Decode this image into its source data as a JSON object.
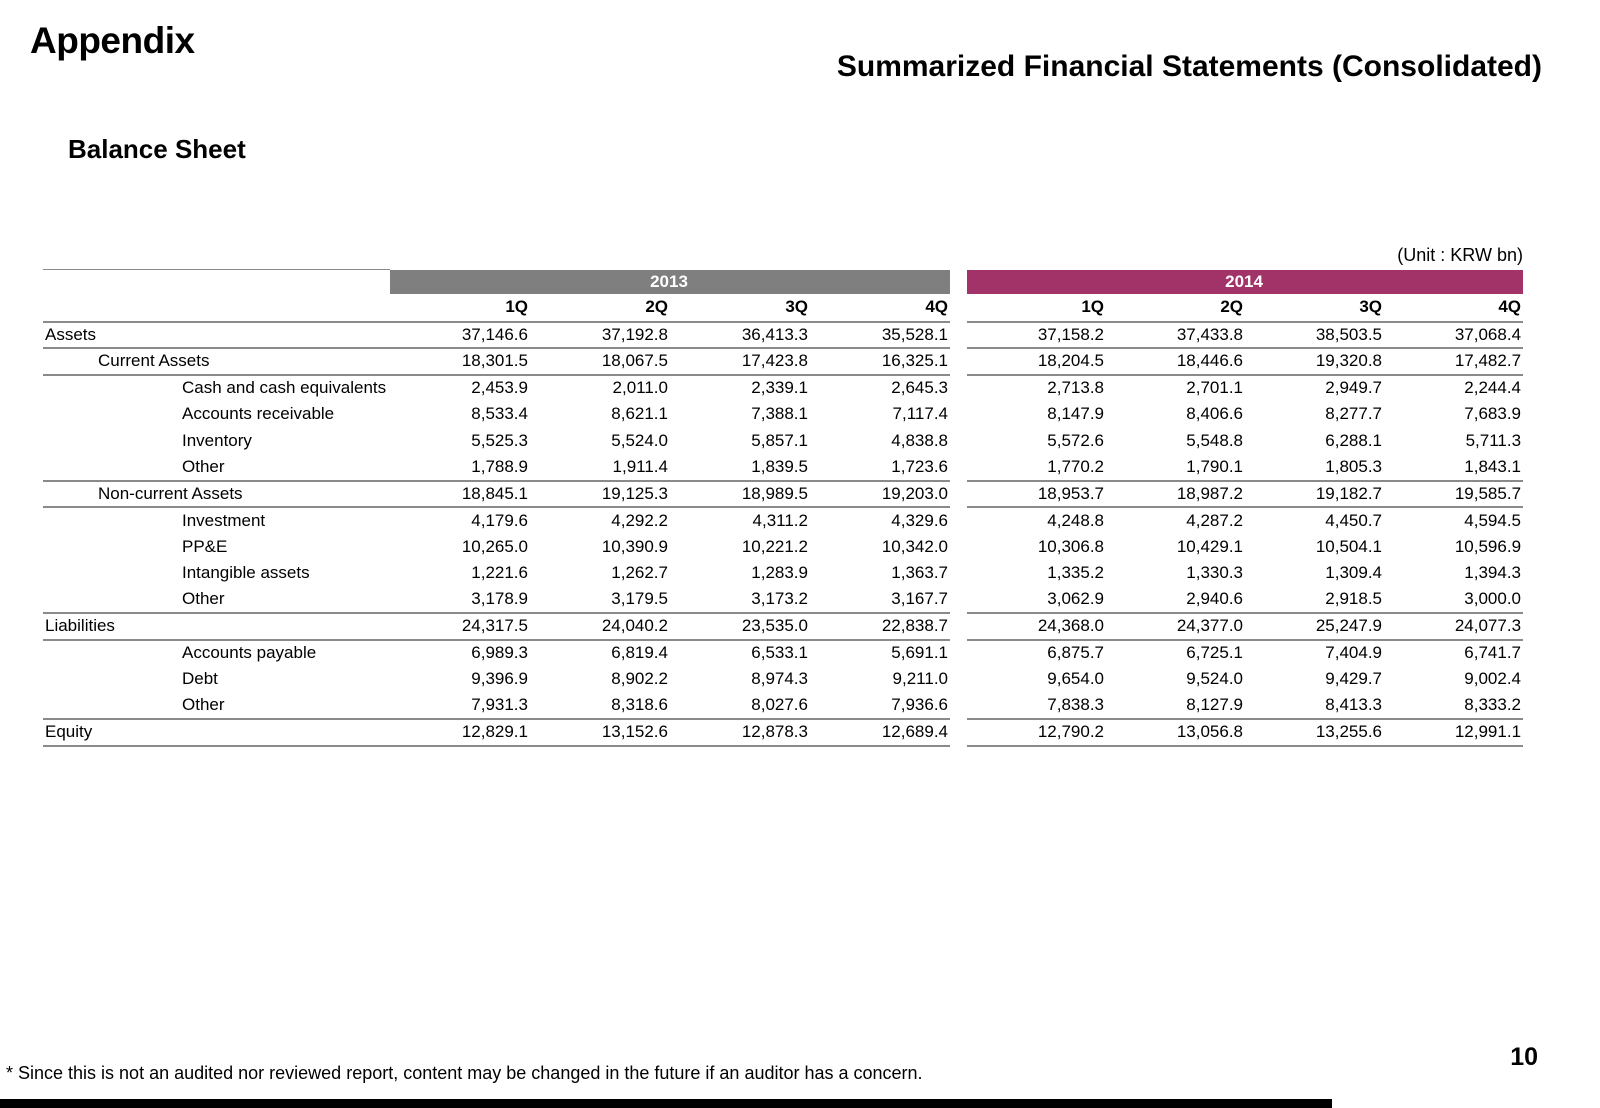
{
  "page": {
    "title": "Appendix",
    "subtitle": "Summarized Financial Statements (Consolidated)",
    "section_heading": "Balance Sheet",
    "unit_label": "(Unit : KRW bn)",
    "footnote": "* Since this is not an audited nor reviewed report, content may be changed in the future if an auditor has a concern.",
    "page_number": "10"
  },
  "colors": {
    "band_2013_bg": "#7F7F7F",
    "band_2014_bg": "#A23369",
    "band_text": "#FFFFFF",
    "rule_line": "#8A8A8A",
    "bottom_bar": "#000000"
  },
  "table": {
    "year_groups": [
      {
        "label": "2013",
        "quarters": [
          "1Q",
          "2Q",
          "3Q",
          "4Q"
        ]
      },
      {
        "label": "2014",
        "quarters": [
          "1Q",
          "2Q",
          "3Q",
          "4Q"
        ]
      }
    ],
    "rows": [
      {
        "label": "Assets",
        "indent": 0,
        "border_bottom": true,
        "values_2013": [
          "37,146.6",
          "37,192.8",
          "36,413.3",
          "35,528.1"
        ],
        "values_2014": [
          "37,158.2",
          "37,433.8",
          "38,503.5",
          "37,068.4"
        ]
      },
      {
        "label": "Current Assets",
        "indent": 1,
        "border_bottom": true,
        "values_2013": [
          "18,301.5",
          "18,067.5",
          "17,423.8",
          "16,325.1"
        ],
        "values_2014": [
          "18,204.5",
          "18,446.6",
          "19,320.8",
          "17,482.7"
        ]
      },
      {
        "label": "Cash and cash equivalents",
        "indent": 2,
        "border_bottom": false,
        "values_2013": [
          "2,453.9",
          "2,011.0",
          "2,339.1",
          "2,645.3"
        ],
        "values_2014": [
          "2,713.8",
          "2,701.1",
          "2,949.7",
          "2,244.4"
        ]
      },
      {
        "label": "Accounts receivable",
        "indent": 2,
        "border_bottom": false,
        "values_2013": [
          "8,533.4",
          "8,621.1",
          "7,388.1",
          "7,117.4"
        ],
        "values_2014": [
          "8,147.9",
          "8,406.6",
          "8,277.7",
          "7,683.9"
        ]
      },
      {
        "label": "Inventory",
        "indent": 2,
        "border_bottom": false,
        "values_2013": [
          "5,525.3",
          "5,524.0",
          "5,857.1",
          "4,838.8"
        ],
        "values_2014": [
          "5,572.6",
          "5,548.8",
          "6,288.1",
          "5,711.3"
        ]
      },
      {
        "label": "Other",
        "indent": 2,
        "border_bottom": true,
        "values_2013": [
          "1,788.9",
          "1,911.4",
          "1,839.5",
          "1,723.6"
        ],
        "values_2014": [
          "1,770.2",
          "1,790.1",
          "1,805.3",
          "1,843.1"
        ]
      },
      {
        "label": "Non-current Assets",
        "indent": 1,
        "border_bottom": true,
        "values_2013": [
          "18,845.1",
          "19,125.3",
          "18,989.5",
          "19,203.0"
        ],
        "values_2014": [
          "18,953.7",
          "18,987.2",
          "19,182.7",
          "19,585.7"
        ]
      },
      {
        "label": "Investment",
        "indent": 2,
        "border_bottom": false,
        "values_2013": [
          "4,179.6",
          "4,292.2",
          "4,311.2",
          "4,329.6"
        ],
        "values_2014": [
          "4,248.8",
          "4,287.2",
          "4,450.7",
          "4,594.5"
        ]
      },
      {
        "label": "PP&E",
        "indent": 2,
        "border_bottom": false,
        "values_2013": [
          "10,265.0",
          "10,390.9",
          "10,221.2",
          "10,342.0"
        ],
        "values_2014": [
          "10,306.8",
          "10,429.1",
          "10,504.1",
          "10,596.9"
        ]
      },
      {
        "label": "Intangible assets",
        "indent": 2,
        "border_bottom": false,
        "values_2013": [
          "1,221.6",
          "1,262.7",
          "1,283.9",
          "1,363.7"
        ],
        "values_2014": [
          "1,335.2",
          "1,330.3",
          "1,309.4",
          "1,394.3"
        ]
      },
      {
        "label": "Other",
        "indent": 2,
        "border_bottom": true,
        "values_2013": [
          "3,178.9",
          "3,179.5",
          "3,173.2",
          "3,167.7"
        ],
        "values_2014": [
          "3,062.9",
          "2,940.6",
          "2,918.5",
          "3,000.0"
        ]
      },
      {
        "label": "Liabilities",
        "indent": 0,
        "border_bottom": true,
        "values_2013": [
          "24,317.5",
          "24,040.2",
          "23,535.0",
          "22,838.7"
        ],
        "values_2014": [
          "24,368.0",
          "24,377.0",
          "25,247.9",
          "24,077.3"
        ]
      },
      {
        "label": "Accounts payable",
        "indent": 2,
        "border_bottom": false,
        "values_2013": [
          "6,989.3",
          "6,819.4",
          "6,533.1",
          "5,691.1"
        ],
        "values_2014": [
          "6,875.7",
          "6,725.1",
          "7,404.9",
          "6,741.7"
        ]
      },
      {
        "label": "Debt",
        "indent": 2,
        "border_bottom": false,
        "values_2013": [
          "9,396.9",
          "8,902.2",
          "8,974.3",
          "9,211.0"
        ],
        "values_2014": [
          "9,654.0",
          "9,524.0",
          "9,429.7",
          "9,002.4"
        ]
      },
      {
        "label": "Other",
        "indent": 2,
        "border_bottom": true,
        "values_2013": [
          "7,931.3",
          "8,318.6",
          "8,027.6",
          "7,936.6"
        ],
        "values_2014": [
          "7,838.3",
          "8,127.9",
          "8,413.3",
          "8,333.2"
        ]
      },
      {
        "label": "Equity",
        "indent": 0,
        "border_bottom": true,
        "values_2013": [
          "12,829.1",
          "13,152.6",
          "12,878.3",
          "12,689.4"
        ],
        "values_2014": [
          "12,790.2",
          "13,056.8",
          "13,255.6",
          "12,991.1"
        ]
      }
    ]
  }
}
